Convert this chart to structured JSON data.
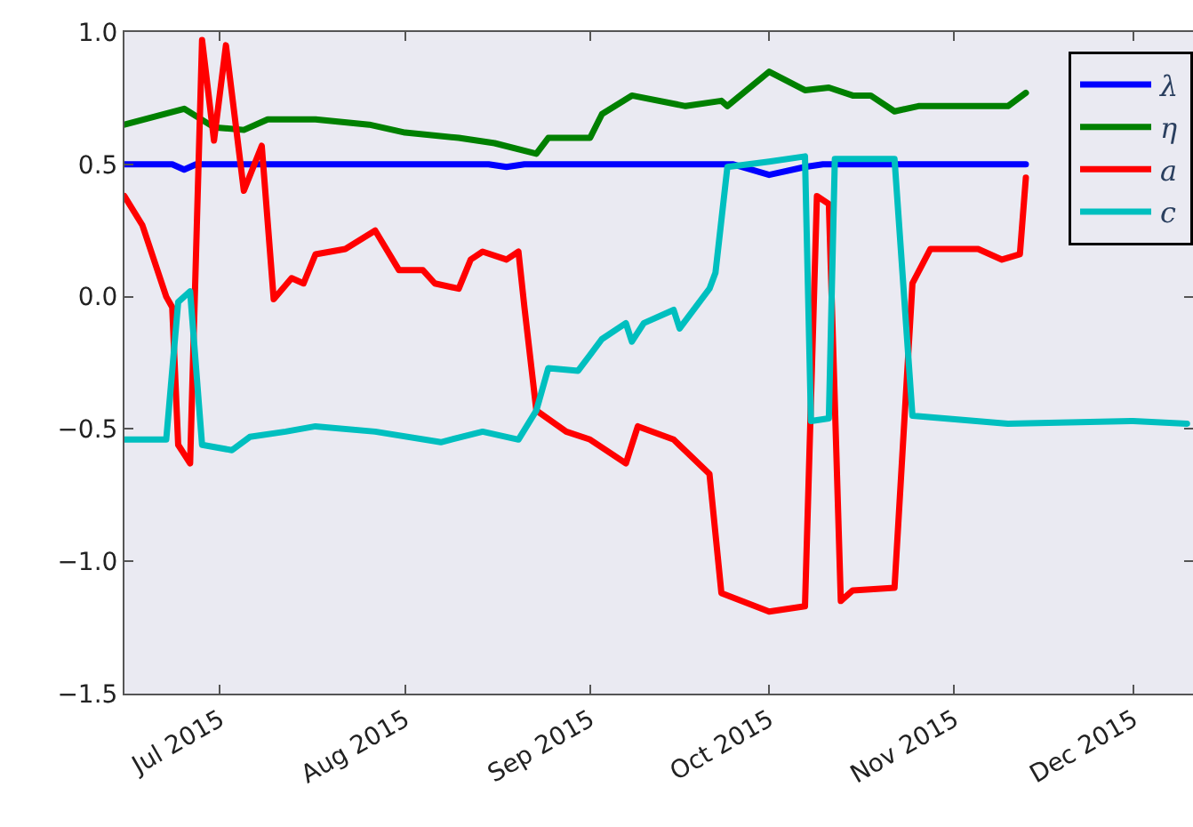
{
  "chart_data": {
    "type": "line",
    "xlim": [
      "2015-06-15",
      "2015-12-11"
    ],
    "ylim": [
      -1.5,
      1.0
    ],
    "xticks": [
      {
        "value": "2015-07-01",
        "label": "Jul 2015"
      },
      {
        "value": "2015-08-01",
        "label": "Aug 2015"
      },
      {
        "value": "2015-09-01",
        "label": "Sep 2015"
      },
      {
        "value": "2015-10-01",
        "label": "Oct 2015"
      },
      {
        "value": "2015-11-01",
        "label": "Nov 2015"
      },
      {
        "value": "2015-12-01",
        "label": "Dec 2015"
      }
    ],
    "yticks": [
      {
        "value": -1.5,
        "label": "−1.5"
      },
      {
        "value": -1.0,
        "label": "−1.0"
      },
      {
        "value": -0.5,
        "label": "−0.5"
      },
      {
        "value": 0.0,
        "label": "0.0"
      },
      {
        "value": 0.5,
        "label": "0.5"
      },
      {
        "value": 1.0,
        "label": "1.0"
      }
    ],
    "grid": false,
    "legend": "top right",
    "marker": "none",
    "line_style": "solid",
    "series": [
      {
        "name": "λ",
        "color": "#0000ff",
        "x": [
          "2015-06-15",
          "2015-06-23",
          "2015-06-25",
          "2015-06-27",
          "2015-07-15",
          "2015-08-15",
          "2015-08-18",
          "2015-08-21",
          "2015-09-20",
          "2015-09-25",
          "2015-10-01",
          "2015-10-07",
          "2015-10-10",
          "2015-11-13"
        ],
        "values": [
          0.5,
          0.5,
          0.48,
          0.5,
          0.5,
          0.5,
          0.49,
          0.5,
          0.5,
          0.5,
          0.46,
          0.49,
          0.5,
          0.5
        ]
      },
      {
        "name": "η",
        "color": "#008000",
        "x": [
          "2015-06-15",
          "2015-06-25",
          "2015-06-30",
          "2015-07-05",
          "2015-07-09",
          "2015-07-17",
          "2015-07-26",
          "2015-08-01",
          "2015-08-10",
          "2015-08-16",
          "2015-08-23",
          "2015-08-25",
          "2015-09-01",
          "2015-09-03",
          "2015-09-08",
          "2015-09-17",
          "2015-09-23",
          "2015-09-24",
          "2015-10-01",
          "2015-10-07",
          "2015-10-11",
          "2015-10-15",
          "2015-10-18",
          "2015-10-22",
          "2015-10-26",
          "2015-11-10",
          "2015-11-13"
        ],
        "values": [
          0.65,
          0.71,
          0.64,
          0.63,
          0.67,
          0.67,
          0.65,
          0.62,
          0.6,
          0.58,
          0.54,
          0.6,
          0.6,
          0.69,
          0.76,
          0.72,
          0.74,
          0.72,
          0.85,
          0.78,
          0.79,
          0.76,
          0.76,
          0.7,
          0.72,
          0.72,
          0.77
        ]
      },
      {
        "name": "a",
        "color": "#ff0000",
        "x": [
          "2015-06-15",
          "2015-06-18",
          "2015-06-22",
          "2015-06-23",
          "2015-06-24",
          "2015-06-26",
          "2015-06-28",
          "2015-06-30",
          "2015-07-02",
          "2015-07-05",
          "2015-07-08",
          "2015-07-10",
          "2015-07-13",
          "2015-07-15",
          "2015-07-17",
          "2015-07-22",
          "2015-07-27",
          "2015-07-31",
          "2015-08-04",
          "2015-08-06",
          "2015-08-10",
          "2015-08-12",
          "2015-08-14",
          "2015-08-18",
          "2015-08-20",
          "2015-08-21",
          "2015-08-23",
          "2015-08-28",
          "2015-09-01",
          "2015-09-07",
          "2015-09-09",
          "2015-09-15",
          "2015-09-21",
          "2015-09-23",
          "2015-10-01",
          "2015-10-07",
          "2015-10-09",
          "2015-10-11",
          "2015-10-13",
          "2015-10-15",
          "2015-10-22",
          "2015-10-25",
          "2015-10-28",
          "2015-11-05",
          "2015-11-09",
          "2015-11-12",
          "2015-11-13"
        ],
        "values": [
          0.38,
          0.27,
          0.0,
          -0.04,
          -0.56,
          -0.63,
          0.97,
          0.59,
          0.95,
          0.4,
          0.57,
          -0.01,
          0.07,
          0.05,
          0.16,
          0.18,
          0.25,
          0.1,
          0.1,
          0.05,
          0.03,
          0.14,
          0.17,
          0.14,
          0.17,
          -0.04,
          -0.43,
          -0.51,
          -0.54,
          -0.63,
          -0.49,
          -0.54,
          -0.67,
          -1.12,
          -1.19,
          -1.17,
          0.38,
          0.35,
          -1.15,
          -1.11,
          -1.1,
          0.05,
          0.18,
          0.18,
          0.14,
          0.16,
          0.45
        ]
      },
      {
        "name": "c",
        "color": "#00bfbf",
        "x": [
          "2015-06-15",
          "2015-06-22",
          "2015-06-24",
          "2015-06-26",
          "2015-06-28",
          "2015-07-03",
          "2015-07-06",
          "2015-07-12",
          "2015-07-17",
          "2015-07-27",
          "2015-08-07",
          "2015-08-14",
          "2015-08-20",
          "2015-08-23",
          "2015-08-25",
          "2015-08-30",
          "2015-09-01",
          "2015-09-03",
          "2015-09-07",
          "2015-09-08",
          "2015-09-10",
          "2015-09-15",
          "2015-09-16",
          "2015-09-21",
          "2015-09-22",
          "2015-09-24",
          "2015-10-01",
          "2015-10-07",
          "2015-10-08",
          "2015-10-11",
          "2015-10-12",
          "2015-10-22",
          "2015-10-25",
          "2015-11-10",
          "2015-12-01",
          "2015-12-10"
        ],
        "values": [
          -0.54,
          -0.54,
          -0.02,
          0.02,
          -0.56,
          -0.58,
          -0.53,
          -0.51,
          -0.49,
          -0.51,
          -0.55,
          -0.51,
          -0.54,
          -0.43,
          -0.27,
          -0.28,
          -0.22,
          -0.16,
          -0.1,
          -0.17,
          -0.1,
          -0.05,
          -0.12,
          0.03,
          0.09,
          0.49,
          0.51,
          0.53,
          -0.47,
          -0.46,
          0.52,
          0.52,
          -0.45,
          -0.48,
          -0.47,
          -0.48
        ]
      }
    ]
  }
}
